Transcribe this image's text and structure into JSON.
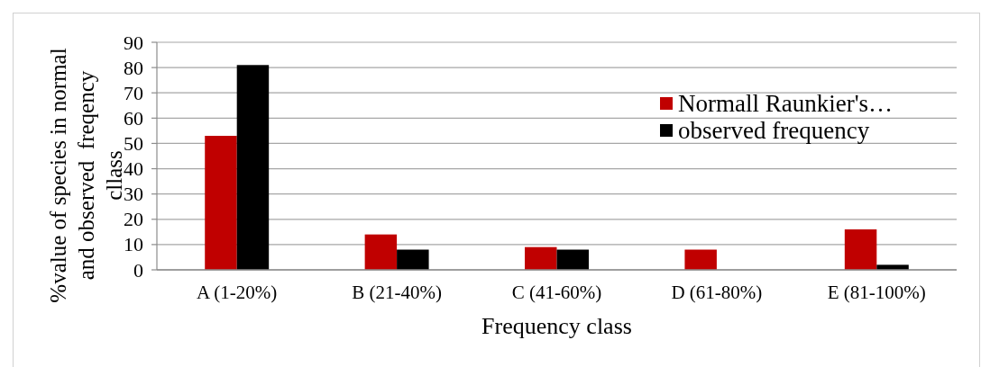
{
  "chart_data": {
    "type": "bar",
    "xlabel": "Frequency class",
    "ylabel": "%value of species in normal\nand observed  freqency\ncllass",
    "categories": [
      "A (1-20%)",
      "B (21-40%)",
      "C (41-60%)",
      "D (61-80%)",
      "E (81-100%)"
    ],
    "series": [
      {
        "name": "Normall Raunkier's…",
        "color": "#c00000",
        "values": [
          53,
          14,
          9,
          8,
          16
        ]
      },
      {
        "name": "observed frequency",
        "color": "#000000",
        "values": [
          81,
          8,
          8,
          null,
          2
        ]
      }
    ],
    "ylim": [
      0,
      90
    ],
    "yticks": [
      0,
      10,
      20,
      30,
      40,
      50,
      60,
      70,
      80,
      90
    ],
    "grid": "y",
    "legend": "right"
  }
}
